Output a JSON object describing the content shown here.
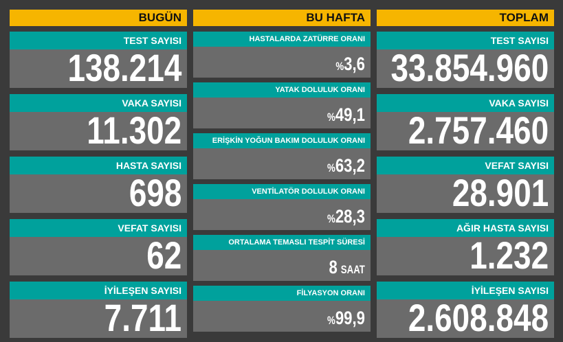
{
  "columns": [
    {
      "header": "BUGÜN",
      "items": [
        {
          "label": "TEST SAYISI",
          "value": "138.214"
        },
        {
          "label": "VAKA SAYISI",
          "value": "11.302"
        },
        {
          "label": "HASTA SAYISI",
          "value": "698"
        },
        {
          "label": "VEFAT SAYISI",
          "value": "62"
        },
        {
          "label": "İYİLEŞEN SAYISI",
          "value": "7.711"
        }
      ]
    },
    {
      "header": "BU HAFTA",
      "items": [
        {
          "label": "HASTALARDA ZATÜRRE ORANI",
          "prefix": "%",
          "value": "3,6"
        },
        {
          "label": "YATAK DOLULUK ORANI",
          "prefix": "%",
          "value": "49,1"
        },
        {
          "label": "ERİŞKİN YOĞUN BAKIM DOLULUK ORANI",
          "prefix": "%",
          "value": "63,2"
        },
        {
          "label": "VENTİLATÖR DOLULUK ORANI",
          "prefix": "%",
          "value": "28,3"
        },
        {
          "label": "ORTALAMA TEMASLI TESPİT SÜRESİ",
          "value": "8",
          "suffix": "SAAT"
        },
        {
          "label": "FİLYASYON ORANI",
          "prefix": "%",
          "value": "99,9"
        }
      ]
    },
    {
      "header": "TOPLAM",
      "items": [
        {
          "label": "TEST SAYISI",
          "value": "33.854.960"
        },
        {
          "label": "VAKA SAYISI",
          "value": "2.757.460"
        },
        {
          "label": "VEFAT SAYISI",
          "value": "28.901"
        },
        {
          "label": "AĞIR HASTA SAYISI",
          "value": "1.232"
        },
        {
          "label": "İYİLEŞEN SAYISI",
          "value": "2.608.848"
        }
      ]
    }
  ]
}
